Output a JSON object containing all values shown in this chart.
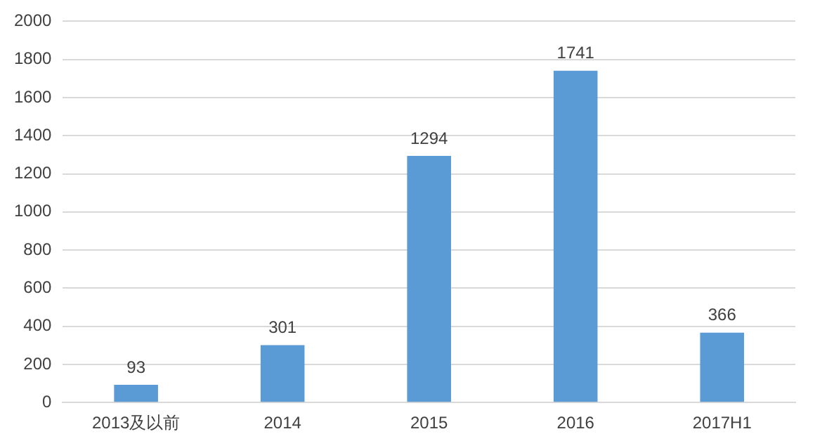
{
  "chart_data": {
    "type": "bar",
    "categories": [
      "2013及以前",
      "2014",
      "2015",
      "2016",
      "2017H1"
    ],
    "values": [
      93,
      301,
      1294,
      1741,
      366
    ],
    "color": "#5b9bd5",
    "ylim": [
      0,
      2000
    ],
    "yticks": [
      0,
      200,
      400,
      600,
      800,
      1000,
      1200,
      1400,
      1600,
      1800,
      2000
    ],
    "grid": "y",
    "data_labels": true
  }
}
